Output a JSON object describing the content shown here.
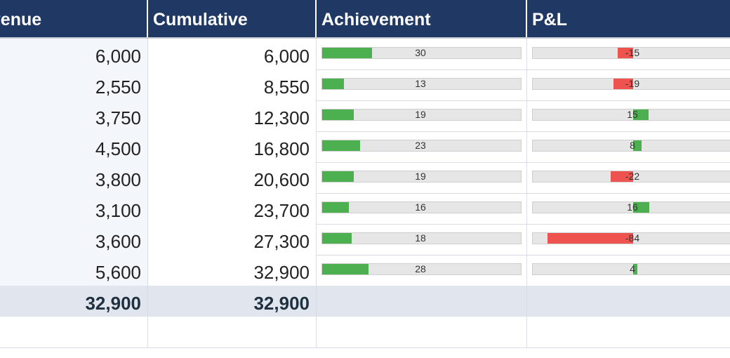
{
  "columns": {
    "revenue": "evenue",
    "cumulative": "Cumulative",
    "achievement": "Achievement",
    "pnl": "P&L"
  },
  "colors": {
    "header_bg": "#1f3864",
    "positive": "#4caf50",
    "negative": "#ef5350"
  },
  "rows": [
    {
      "revenue": "6,000",
      "cumulative": "6,000",
      "achievement": 30,
      "pnl": -15
    },
    {
      "revenue": "2,550",
      "cumulative": "8,550",
      "achievement": 13,
      "pnl": -19
    },
    {
      "revenue": "3,750",
      "cumulative": "12,300",
      "achievement": 19,
      "pnl": 15
    },
    {
      "revenue": "4,500",
      "cumulative": "16,800",
      "achievement": 23,
      "pnl": 8
    },
    {
      "revenue": "3,800",
      "cumulative": "20,600",
      "achievement": 19,
      "pnl": -22
    },
    {
      "revenue": "3,100",
      "cumulative": "23,700",
      "achievement": 16,
      "pnl": 16
    },
    {
      "revenue": "3,600",
      "cumulative": "27,300",
      "achievement": 18,
      "pnl": -84
    },
    {
      "revenue": "5,600",
      "cumulative": "32,900",
      "achievement": 28,
      "pnl": 4
    }
  ],
  "totals": {
    "revenue": "32,900",
    "cumulative": "32,900"
  }
}
